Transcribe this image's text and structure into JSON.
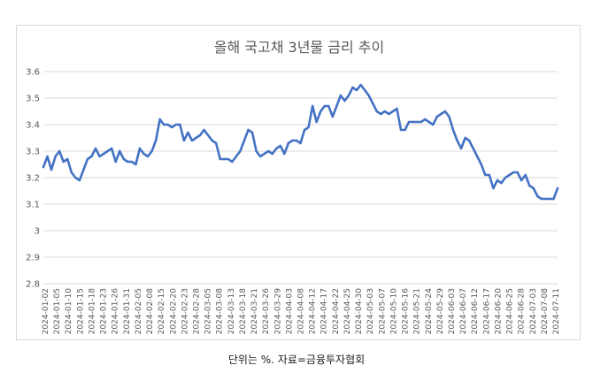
{
  "caption": "단위는 %. 자료=금융투자협회",
  "chart_data": {
    "type": "line",
    "title": "올해 국고채 3년물 금리 추이",
    "xlabel": "",
    "ylabel": "",
    "ylim": [
      2.8,
      3.6
    ],
    "yticks": [
      "2.8",
      "2.9",
      "3",
      "3.1",
      "3.2",
      "3.3",
      "3.4",
      "3.5",
      "3.6"
    ],
    "grid": true,
    "legend": "none",
    "color": "#4472c4",
    "xtick_labels": [
      "2024-01-02",
      "2024-01-05",
      "2024-01-10",
      "2024-01-15",
      "2024-01-18",
      "2024-01-23",
      "2024-01-26",
      "2024-01-31",
      "2024-02-05",
      "2024-02-08",
      "2024-02-15",
      "2024-02-20",
      "2024-02-23",
      "2024-02-28",
      "2024-03-05",
      "2024-03-08",
      "2024-03-13",
      "2024-03-18",
      "2024-03-21",
      "2024-03-26",
      "2024-03-29",
      "2024-04-03",
      "2024-04-08",
      "2024-04-12",
      "2024-04-17",
      "2024-04-22",
      "2024-04-25",
      "2024-04-30",
      "2024-05-03",
      "2024-05-07",
      "2024-05-10",
      "2024-05-16",
      "2024-05-21",
      "2024-05-24",
      "2024-05-29",
      "2024-06-03",
      "2024-06-07",
      "2024-06-12",
      "2024-06-17",
      "2024-06-20",
      "2024-06-25",
      "2024-06-28",
      "2024-07-03",
      "2024-07-08",
      "2024-07-11"
    ],
    "series": [
      {
        "values": [
          3.24,
          3.28,
          3.23,
          3.28,
          3.3,
          3.26,
          3.27,
          3.22,
          3.2,
          3.19,
          3.23,
          3.27,
          3.28,
          3.31,
          3.28,
          3.29,
          3.3,
          3.31,
          3.26,
          3.3,
          3.27,
          3.26,
          3.26,
          3.25,
          3.31,
          3.29,
          3.28,
          3.3,
          3.34,
          3.42,
          3.4,
          3.4,
          3.39,
          3.4,
          3.4,
          3.34,
          3.37,
          3.34,
          3.35,
          3.36,
          3.38,
          3.36,
          3.34,
          3.33,
          3.27,
          3.27,
          3.27,
          3.26,
          3.28,
          3.3,
          3.34,
          3.38,
          3.37,
          3.3,
          3.28,
          3.29,
          3.3,
          3.29,
          3.31,
          3.32,
          3.29,
          3.33,
          3.34,
          3.34,
          3.33,
          3.38,
          3.39,
          3.47,
          3.41,
          3.45,
          3.47,
          3.47,
          3.43,
          3.47,
          3.51,
          3.49,
          3.51,
          3.54,
          3.53,
          3.55,
          3.53,
          3.51,
          3.48,
          3.45,
          3.44,
          3.45,
          3.44,
          3.45,
          3.46,
          3.38,
          3.38,
          3.41,
          3.41,
          3.41,
          3.41,
          3.42,
          3.41,
          3.4,
          3.43,
          3.44,
          3.45,
          3.43,
          3.38,
          3.34,
          3.31,
          3.35,
          3.34,
          3.31,
          3.28,
          3.25,
          3.21,
          3.21,
          3.16,
          3.19,
          3.18,
          3.2,
          3.21,
          3.22,
          3.22,
          3.19,
          3.21,
          3.17,
          3.16,
          3.13,
          3.12,
          3.12,
          3.12,
          3.12,
          3.16
        ]
      }
    ]
  }
}
